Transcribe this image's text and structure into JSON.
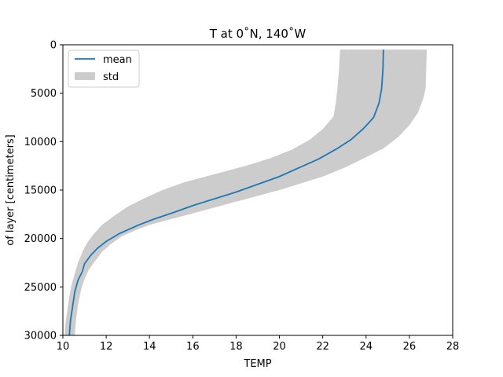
{
  "chart_data": {
    "type": "line",
    "title": "T at 0˚N, 140˚W",
    "xlabel": "TEMP",
    "ylabel": "of layer [centimeters]",
    "xlim": [
      10,
      28
    ],
    "ylim": [
      30000,
      0
    ],
    "y_inverted": true,
    "xticks": [
      "10",
      "12",
      "14",
      "16",
      "18",
      "20",
      "22",
      "24",
      "26",
      "28"
    ],
    "yticks": [
      "0",
      "5000",
      "10000",
      "15000",
      "20000",
      "25000",
      "30000"
    ],
    "grid": false,
    "legend_placement": "top-left",
    "series": [
      {
        "name": "mean",
        "color": "#1f77b4",
        "points": [
          [
            24.8,
            500
          ],
          [
            24.78,
            2500
          ],
          [
            24.72,
            4500
          ],
          [
            24.6,
            6000
          ],
          [
            24.35,
            7500
          ],
          [
            23.9,
            8600
          ],
          [
            23.3,
            9800
          ],
          [
            22.6,
            10800
          ],
          [
            21.8,
            11800
          ],
          [
            21.0,
            12600
          ],
          [
            20.0,
            13600
          ],
          [
            19.0,
            14400
          ],
          [
            18.0,
            15200
          ],
          [
            17.0,
            15900
          ],
          [
            16.0,
            16600
          ],
          [
            15.0,
            17400
          ],
          [
            14.2,
            18000
          ],
          [
            13.5,
            18600
          ],
          [
            12.6,
            19500
          ],
          [
            12.0,
            20300
          ],
          [
            11.6,
            21000
          ],
          [
            11.3,
            21700
          ],
          [
            11.0,
            22600
          ],
          [
            10.9,
            23400
          ],
          [
            10.7,
            24300
          ],
          [
            10.55,
            25500
          ],
          [
            10.45,
            27000
          ],
          [
            10.35,
            28500
          ],
          [
            10.3,
            30000
          ]
        ]
      },
      {
        "name": "std",
        "color": "#cccccc",
        "upper": [
          [
            26.8,
            500
          ],
          [
            26.78,
            2500
          ],
          [
            26.75,
            4500
          ],
          [
            26.65,
            5500
          ],
          [
            26.4,
            7000
          ],
          [
            26.0,
            8300
          ],
          [
            25.5,
            9500
          ],
          [
            24.8,
            10700
          ],
          [
            24.0,
            11600
          ],
          [
            23.0,
            12700
          ],
          [
            22.0,
            13600
          ],
          [
            21.0,
            14300
          ],
          [
            20.0,
            15000
          ],
          [
            19.0,
            15600
          ],
          [
            18.0,
            16200
          ],
          [
            17.0,
            16800
          ],
          [
            16.0,
            17400
          ],
          [
            15.0,
            18000
          ],
          [
            14.0,
            18600
          ],
          [
            13.3,
            19200
          ],
          [
            12.7,
            19800
          ],
          [
            12.2,
            20600
          ],
          [
            11.8,
            21400
          ],
          [
            11.5,
            22300
          ],
          [
            11.2,
            23200
          ],
          [
            11.0,
            24200
          ],
          [
            10.85,
            25200
          ],
          [
            10.7,
            26800
          ],
          [
            10.6,
            28500
          ],
          [
            10.55,
            30000
          ]
        ],
        "lower": [
          [
            22.8,
            500
          ],
          [
            22.75,
            2500
          ],
          [
            22.68,
            4500
          ],
          [
            22.6,
            6000
          ],
          [
            22.5,
            7400
          ],
          [
            22.0,
            8700
          ],
          [
            21.4,
            9800
          ],
          [
            20.6,
            10800
          ],
          [
            19.6,
            11700
          ],
          [
            18.6,
            12400
          ],
          [
            17.6,
            13000
          ],
          [
            16.6,
            13600
          ],
          [
            15.6,
            14200
          ],
          [
            14.6,
            15000
          ],
          [
            13.8,
            15800
          ],
          [
            13.0,
            16700
          ],
          [
            12.4,
            17600
          ],
          [
            11.8,
            18600
          ],
          [
            11.4,
            19600
          ],
          [
            11.1,
            20500
          ],
          [
            10.9,
            21400
          ],
          [
            10.7,
            22500
          ],
          [
            10.55,
            23600
          ],
          [
            10.4,
            24800
          ],
          [
            10.3,
            26000
          ],
          [
            10.2,
            27500
          ],
          [
            10.12,
            28800
          ],
          [
            10.08,
            30000
          ]
        ]
      }
    ]
  }
}
